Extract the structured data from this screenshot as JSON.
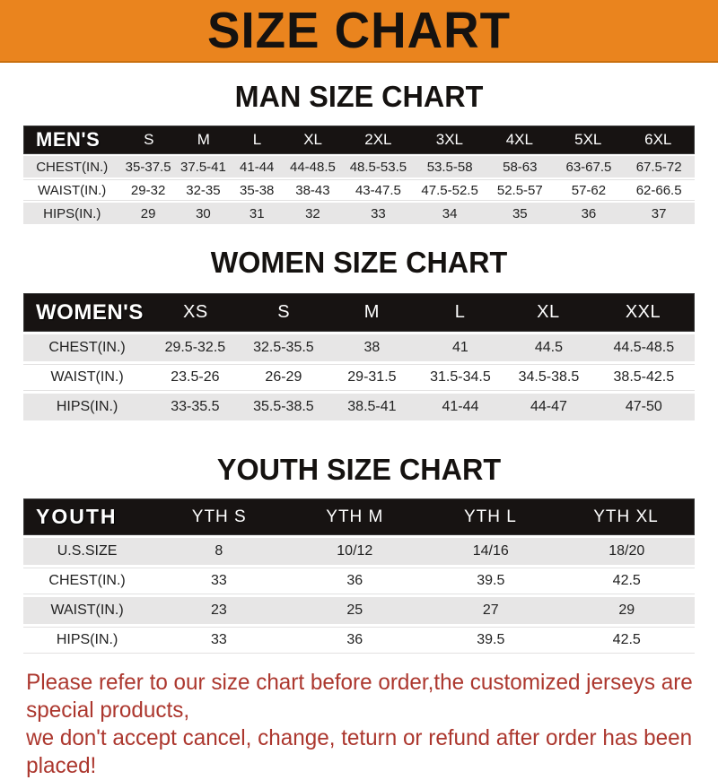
{
  "banner": {
    "title": "SIZE CHART",
    "bg_color": "#EA841E",
    "text_color": "#151210"
  },
  "colors": {
    "header_band": "#171312",
    "row_gray": "#E7E6E6",
    "footer_red": "#AC372E"
  },
  "sections": [
    {
      "title": "MAN SIZE CHART",
      "table": {
        "label": "MEN'S",
        "columns": [
          "S",
          "M",
          "L",
          "XL",
          "2XL",
          "3XL",
          "4XL",
          "5XL",
          "6XL"
        ],
        "rows": [
          {
            "label": "CHEST(IN.)",
            "values": [
              "35-37.5",
              "37.5-41",
              "41-44",
              "44-48.5",
              "48.5-53.5",
              "53.5-58",
              "58-63",
              "63-67.5",
              "67.5-72"
            ]
          },
          {
            "label": "WAIST(IN.)",
            "values": [
              "29-32",
              "32-35",
              "35-38",
              "38-43",
              "43-47.5",
              "47.5-52.5",
              "52.5-57",
              "57-62",
              "62-66.5"
            ]
          },
          {
            "label": "HIPS(IN.)",
            "values": [
              "29",
              "30",
              "31",
              "32",
              "33",
              "34",
              "35",
              "36",
              "37"
            ]
          }
        ]
      }
    },
    {
      "title": "WOMEN SIZE CHART",
      "table": {
        "label": "WOMEN'S",
        "columns": [
          "XS",
          "S",
          "M",
          "L",
          "XL",
          "XXL"
        ],
        "rows": [
          {
            "label": "CHEST(IN.)",
            "values": [
              "29.5-32.5",
              "32.5-35.5",
              "38",
              "41",
              "44.5",
              "44.5-48.5"
            ]
          },
          {
            "label": "WAIST(IN.)",
            "values": [
              "23.5-26",
              "26-29",
              "29-31.5",
              "31.5-34.5",
              "34.5-38.5",
              "38.5-42.5"
            ]
          },
          {
            "label": "HIPS(IN.)",
            "values": [
              "33-35.5",
              "35.5-38.5",
              "38.5-41",
              "41-44",
              "44-47",
              "47-50"
            ]
          }
        ]
      }
    },
    {
      "title": "YOUTH SIZE CHART",
      "table": {
        "label": "YOUTH",
        "columns": [
          "YTH S",
          "YTH M",
          "YTH L",
          "YTH XL"
        ],
        "rows": [
          {
            "label": "U.S.SIZE",
            "values": [
              "8",
              "10/12",
              "14/16",
              "18/20"
            ]
          },
          {
            "label": "CHEST(IN.)",
            "values": [
              "33",
              "36",
              "39.5",
              "42.5"
            ]
          },
          {
            "label": "WAIST(IN.)",
            "values": [
              "23",
              "25",
              "27",
              "29"
            ]
          },
          {
            "label": "HIPS(IN.)",
            "values": [
              "33",
              "36",
              "39.5",
              "42.5"
            ]
          }
        ]
      }
    }
  ],
  "footer": {
    "line1": "Please refer to our size chart before order,the customized jerseys are special products,",
    "line2": "we don't accept cancel, change, teturn or refund after order has been placed!"
  }
}
